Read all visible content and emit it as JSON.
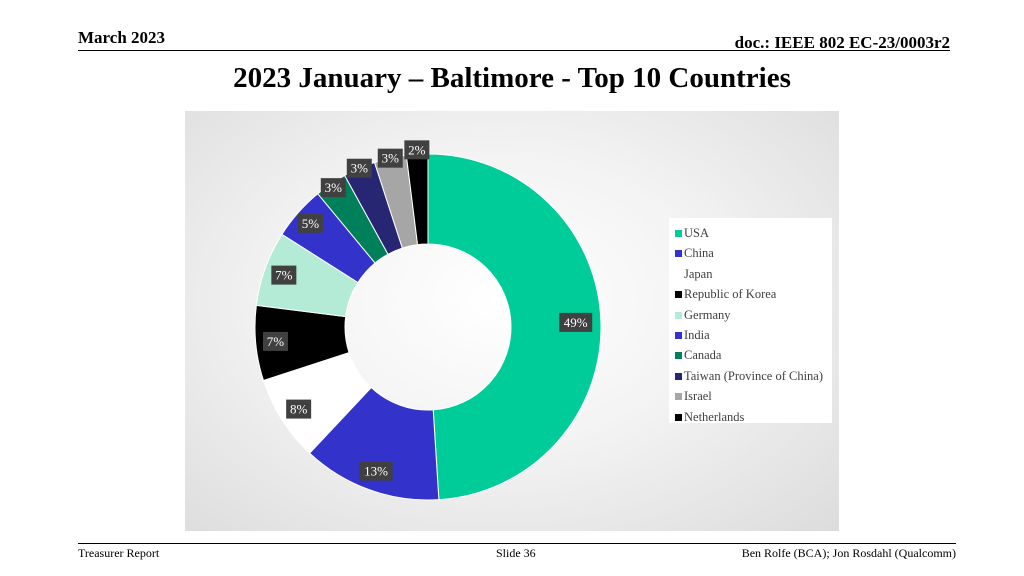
{
  "header": {
    "date": "March 2023",
    "doc_id": "doc.: IEEE 802 EC-23/0003r2"
  },
  "slide_title": "2023 January – Baltimore - Top 10 Countries",
  "footer": {
    "left": "Treasurer Report",
    "center": "Slide 36",
    "right": "Ben Rolfe (BCA);   Jon Rosdahl (Qualcomm)"
  },
  "chart_data": {
    "type": "pie",
    "variant": "donut",
    "title": "",
    "legend_position": "right",
    "slices": [
      {
        "name": "USA",
        "value": 49,
        "label": "49%",
        "color": "#00cc99"
      },
      {
        "name": "China",
        "value": 13,
        "label": "13%",
        "color": "#3333cc"
      },
      {
        "name": "Japan",
        "value": 8,
        "label": "8%",
        "color": "#ffffff"
      },
      {
        "name": "Republic of Korea",
        "value": 7,
        "label": "7%",
        "color": "#000000"
      },
      {
        "name": "Germany",
        "value": 7,
        "label": "7%",
        "color": "#b3ebd6"
      },
      {
        "name": "India",
        "value": 5,
        "label": "5%",
        "color": "#3333cc"
      },
      {
        "name": "Canada",
        "value": 3,
        "label": "3%",
        "color": "#00805a"
      },
      {
        "name": "Taiwan (Province of China)",
        "value": 3,
        "label": "3%",
        "color": "#262673"
      },
      {
        "name": "Israel",
        "value": 3,
        "label": "3%",
        "color": "#a6a6a6"
      },
      {
        "name": "Netherlands",
        "value": 2,
        "label": "2%",
        "color": "#000000"
      }
    ]
  }
}
